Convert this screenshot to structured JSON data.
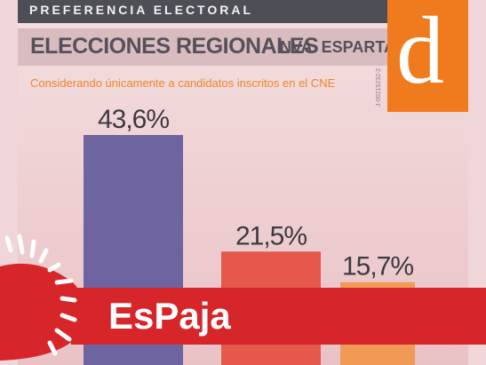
{
  "header": {
    "kicker": "PREFERENCIA ELECTORAL",
    "title": "ELECCIONES REGIONALES",
    "region": "NVA. ESPARTA",
    "subtitle": "Considerando únicamente a candidatos inscritos en el CNE",
    "code": "J-00215232-2"
  },
  "logo": {
    "letter": "d",
    "color": "#f07a1e"
  },
  "chart_data": {
    "type": "bar",
    "categories": [
      "",
      "",
      ""
    ],
    "values": [
      43.6,
      21.5,
      15.7
    ],
    "data_labels": [
      "43,6%",
      "21,5%",
      "15,7%"
    ],
    "colors": [
      "#6e64a0",
      "#e5584c",
      "#f09a55"
    ],
    "ylim": [
      0,
      50
    ],
    "title": "",
    "xlabel": "",
    "ylabel": ""
  },
  "banner": {
    "text": "EsPaja",
    "color": "#d7262a"
  }
}
